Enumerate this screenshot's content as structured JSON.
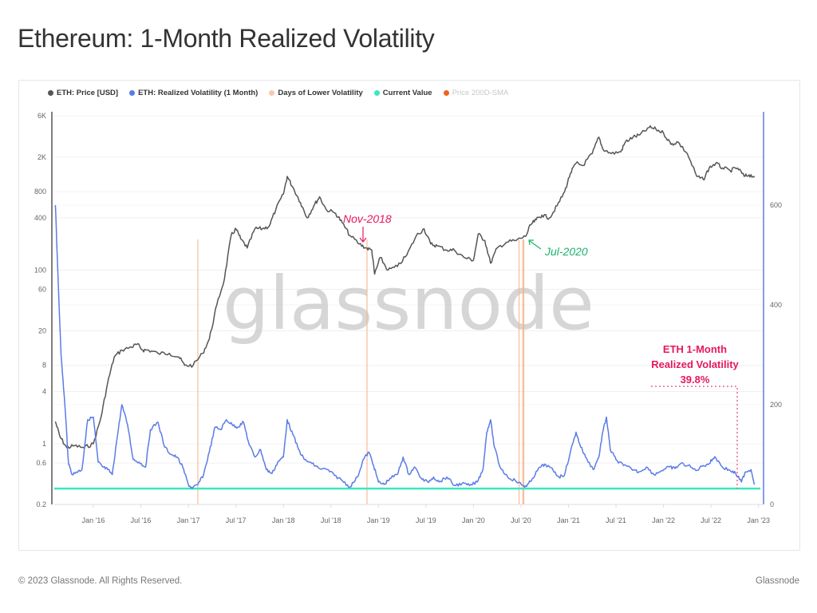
{
  "page": {
    "title": "Ethereum: 1-Month Realized Volatility",
    "footer_left": "© 2023 Glassnode. All Rights Reserved.",
    "footer_right": "Glassnode",
    "watermark": "glassnode"
  },
  "legend": [
    {
      "label": "ETH: Price [USD]",
      "color": "#555555",
      "enabled": true
    },
    {
      "label": "ETH: Realized Volatility (1 Month)",
      "color": "#5b7be8",
      "enabled": true
    },
    {
      "label": "Days of Lower Volatility",
      "color": "#f9c9ac",
      "enabled": true
    },
    {
      "label": "Current Value",
      "color": "#3de6c0",
      "enabled": true
    },
    {
      "label": "Price 200D-SMA",
      "color": "#f0621e",
      "enabled": false
    }
  ],
  "annotations": {
    "nov2018": {
      "label": "Nov-2018",
      "color": "#e8175d"
    },
    "jul2020": {
      "label": "Jul-2020",
      "color": "#19b36b"
    },
    "callout_line1": "ETH 1-Month",
    "callout_line2": "Realized Volatility",
    "callout_value": "39.8%"
  },
  "chart_data": {
    "type": "line",
    "title": "Ethereum: 1-Month Realized Volatility",
    "x_ticks": [
      "Jan '16",
      "Jul '16",
      "Jan '17",
      "Jul '17",
      "Jan '18",
      "Jul '18",
      "Jan '19",
      "Jul '19",
      "Jan '20",
      "Jul '20",
      "Jan '21",
      "Jul '21",
      "Jan '22",
      "Jul '22",
      "Jan '23"
    ],
    "y_left": {
      "scale": "log",
      "ticks": [
        "0.2",
        "0.6",
        "1",
        "4",
        "8",
        "20",
        "60",
        "100",
        "400",
        "800",
        "2K",
        "6K"
      ],
      "tick_values": [
        0.2,
        0.6,
        1,
        4,
        8,
        20,
        60,
        100,
        400,
        800,
        2000,
        6000
      ],
      "range": [
        0.2,
        6500
      ]
    },
    "y_right": {
      "scale": "linear",
      "ticks": [
        "0",
        "200",
        "400",
        "600"
      ],
      "tick_values": [
        0,
        200,
        400,
        600
      ],
      "range": [
        0,
        780
      ]
    },
    "grid": true,
    "legend_position": "top-left",
    "series": [
      {
        "name": "ETH: Price [USD]",
        "axis": "left",
        "color": "#555555",
        "x": [
          2015.6,
          2015.65,
          2015.72,
          2015.8,
          2015.9,
          2016.0,
          2016.08,
          2016.15,
          2016.22,
          2016.3,
          2016.4,
          2016.46,
          2016.52,
          2016.58,
          2016.68,
          2016.8,
          2016.9,
          2016.96,
          2017.05,
          2017.15,
          2017.22,
          2017.3,
          2017.38,
          2017.45,
          2017.5,
          2017.55,
          2017.62,
          2017.7,
          2017.78,
          2017.85,
          2017.92,
          2018.0,
          2018.04,
          2018.1,
          2018.18,
          2018.25,
          2018.32,
          2018.38,
          2018.45,
          2018.55,
          2018.62,
          2018.7,
          2018.8,
          2018.87,
          2018.93,
          2018.96,
          2019.02,
          2019.1,
          2019.2,
          2019.3,
          2019.4,
          2019.48,
          2019.55,
          2019.62,
          2019.72,
          2019.8,
          2019.9,
          2020.0,
          2020.05,
          2020.12,
          2020.18,
          2020.25,
          2020.35,
          2020.45,
          2020.55,
          2020.6,
          2020.66,
          2020.72,
          2020.8,
          2020.88,
          2020.96,
          2021.02,
          2021.08,
          2021.15,
          2021.25,
          2021.32,
          2021.36,
          2021.45,
          2021.55,
          2021.6,
          2021.68,
          2021.75,
          2021.85,
          2021.92,
          2022.0,
          2022.08,
          2022.15,
          2022.25,
          2022.35,
          2022.42,
          2022.48,
          2022.55,
          2022.62,
          2022.7,
          2022.78,
          2022.85,
          2022.9,
          2022.96
        ],
        "values": [
          1.8,
          1.2,
          0.9,
          0.95,
          0.9,
          1.0,
          2.0,
          5.0,
          10,
          12,
          13,
          14,
          12,
          12,
          11,
          11,
          10,
          8,
          8,
          11,
          16,
          40,
          80,
          250,
          300,
          230,
          180,
          300,
          300,
          320,
          500,
          750,
          1200,
          900,
          600,
          400,
          550,
          700,
          500,
          450,
          350,
          250,
          200,
          180,
          170,
          90,
          140,
          100,
          110,
          150,
          250,
          300,
          200,
          190,
          170,
          170,
          140,
          130,
          260,
          220,
          120,
          180,
          210,
          220,
          245,
          330,
          380,
          430,
          400,
          550,
          800,
          1300,
          1700,
          1600,
          2200,
          3400,
          2500,
          2200,
          2300,
          3000,
          3400,
          3600,
          4400,
          4200,
          3800,
          2800,
          3000,
          2200,
          1200,
          1100,
          1500,
          1700,
          1500,
          1400,
          1500,
          1200,
          1250,
          1200
        ]
      },
      {
        "name": "ETH: Realized Volatility (1 Month)",
        "axis": "right",
        "color": "#5b7be8",
        "x": [
          2015.6,
          2015.62,
          2015.66,
          2015.7,
          2015.74,
          2015.78,
          2015.82,
          2015.88,
          2015.94,
          2016.0,
          2016.05,
          2016.1,
          2016.15,
          2016.2,
          2016.24,
          2016.3,
          2016.36,
          2016.42,
          2016.48,
          2016.55,
          2016.6,
          2016.68,
          2016.75,
          2016.82,
          2016.88,
          2016.94,
          2017.0,
          2017.04,
          2017.1,
          2017.16,
          2017.22,
          2017.28,
          2017.34,
          2017.4,
          2017.46,
          2017.52,
          2017.58,
          2017.64,
          2017.7,
          2017.76,
          2017.82,
          2017.88,
          2017.94,
          2018.0,
          2018.04,
          2018.1,
          2018.16,
          2018.22,
          2018.3,
          2018.38,
          2018.46,
          2018.54,
          2018.62,
          2018.7,
          2018.78,
          2018.84,
          2018.9,
          2018.95,
          2019.0,
          2019.06,
          2019.12,
          2019.2,
          2019.26,
          2019.32,
          2019.38,
          2019.46,
          2019.52,
          2019.58,
          2019.64,
          2019.72,
          2019.8,
          2019.88,
          2019.96,
          2020.04,
          2020.1,
          2020.14,
          2020.18,
          2020.22,
          2020.28,
          2020.36,
          2020.44,
          2020.52,
          2020.56,
          2020.62,
          2020.7,
          2020.76,
          2020.84,
          2020.9,
          2020.96,
          2021.02,
          2021.08,
          2021.12,
          2021.18,
          2021.26,
          2021.32,
          2021.36,
          2021.4,
          2021.44,
          2021.5,
          2021.58,
          2021.66,
          2021.74,
          2021.82,
          2021.9,
          2021.98,
          2022.06,
          2022.12,
          2022.18,
          2022.26,
          2022.34,
          2022.42,
          2022.48,
          2022.54,
          2022.62,
          2022.7,
          2022.76,
          2022.82,
          2022.86,
          2022.92,
          2022.96
        ],
        "values": [
          600,
          500,
          300,
          200,
          80,
          60,
          65,
          70,
          170,
          175,
          85,
          75,
          70,
          60,
          120,
          200,
          160,
          90,
          85,
          75,
          150,
          165,
          115,
          100,
          95,
          75,
          40,
          32,
          40,
          60,
          105,
          155,
          150,
          170,
          160,
          155,
          165,
          120,
          95,
          110,
          70,
          62,
          85,
          95,
          170,
          140,
          110,
          90,
          82,
          72,
          70,
          58,
          48,
          35,
          55,
          90,
          105,
          78,
          45,
          40,
          52,
          60,
          95,
          60,
          75,
          50,
          45,
          55,
          45,
          55,
          38,
          42,
          38,
          45,
          70,
          145,
          170,
          115,
          75,
          55,
          48,
          38,
          36,
          52,
          75,
          80,
          68,
          55,
          60,
          105,
          145,
          120,
          95,
          70,
          95,
          145,
          175,
          110,
          90,
          78,
          72,
          65,
          75,
          60,
          68,
          75,
          72,
          82,
          78,
          68,
          78,
          82,
          96,
          75,
          68,
          62,
          45,
          65,
          70,
          40
        ]
      }
    ],
    "current_value": {
      "name": "Current Value",
      "value": 39.8,
      "color": "#3de6c0"
    },
    "lower_volatility_days": [
      2017.1,
      2018.88,
      2020.48,
      2020.52,
      2020.53
    ]
  }
}
